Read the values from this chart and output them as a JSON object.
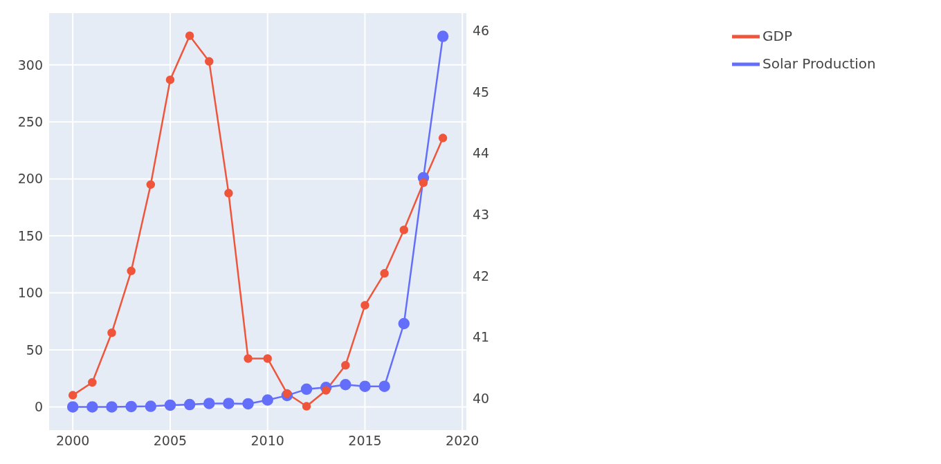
{
  "chart_data": {
    "type": "line",
    "x": [
      2000,
      2001,
      2002,
      2003,
      2004,
      2005,
      2006,
      2007,
      2008,
      2009,
      2010,
      2011,
      2012,
      2013,
      2014,
      2015,
      2016,
      2017,
      2018,
      2019
    ],
    "series": [
      {
        "name": "Solar Production",
        "color": "#636efa",
        "values": [
          0,
          0,
          0,
          0.3,
          0.5,
          1.5,
          2,
          3,
          3,
          2.7,
          6,
          10,
          15.5,
          17,
          19.5,
          18,
          18,
          73,
          201,
          325
        ]
      },
      {
        "name": "GDP",
        "color": "#ef553b",
        "axis": "y2",
        "values": [
          40.05,
          40.26,
          41.07,
          42.08,
          43.49,
          45.2,
          45.92,
          45.5,
          43.35,
          40.65,
          40.65,
          40.08,
          39.87,
          40.13,
          40.54,
          41.52,
          42.04,
          42.75,
          43.52,
          44.25
        ]
      }
    ],
    "xlim": [
      1998.75,
      2020.24
    ],
    "xticks": [
      2000,
      2005,
      2010,
      2015,
      2020
    ],
    "ylim": [
      -21,
      346
    ],
    "yticks": [
      0,
      50,
      100,
      150,
      200,
      250,
      300
    ],
    "y2lim": [
      39.47,
      46.3
    ],
    "y2ticks": [
      40,
      41,
      42,
      43,
      44,
      45,
      46
    ],
    "grid": true,
    "legend": "top right",
    "marker": "circle",
    "line_style": "solid"
  }
}
